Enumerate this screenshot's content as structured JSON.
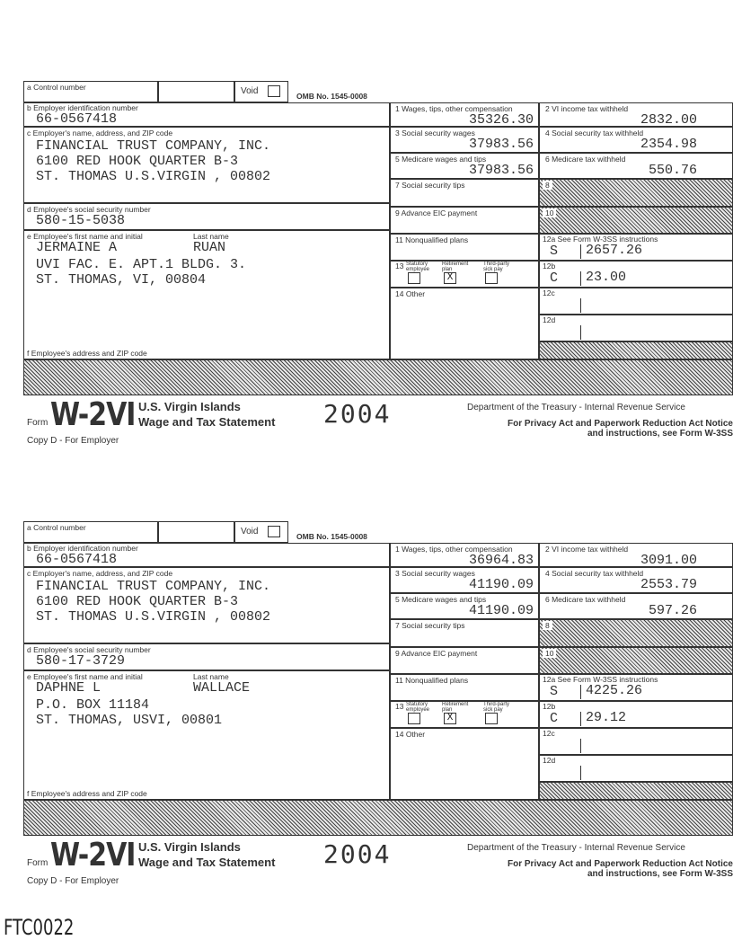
{
  "labels": {
    "a": "a  Control number",
    "void": "Void",
    "omb": "OMB No. 1545-0008",
    "b": "b  Employer identification number",
    "c": "c  Employer's name, address, and ZIP code",
    "d": "d  Employee's social security number",
    "e_first": "e  Employee's first name and initial",
    "e_last": "Last name",
    "f": "f  Employee's address and ZIP code",
    "box1": "1  Wages, tips, other compensation",
    "box2": "2  VI income tax withheld",
    "box3": "3  Social security wages",
    "box4": "4  Social security tax withheld",
    "box5": "5  Medicare wages and tips",
    "box6": "6  Medicare tax withheld",
    "box7": "7  Social security tips",
    "box8": "8",
    "box9": "9  Advance EIC payment",
    "box10": "10",
    "box11": "11  Nonqualified plans",
    "box12a": "12a See Form W-3SS instructions",
    "box12b": "12b",
    "box12c": "12c",
    "box12d": "12d",
    "box13": "13",
    "statutory": "Statutory employee",
    "retirement": "Retirement plan",
    "thirdparty": "Third-party sick pay",
    "box14": "14  Other",
    "form_word": "Form",
    "form_name": "W-2VI",
    "title1": "U.S. Virgin Islands",
    "title2": "Wage and Tax Statement",
    "year": "2004",
    "dept": "Department of the Treasury - Internal Revenue Service",
    "privacy1": "For Privacy Act and Paperwork Reduction Act Notice",
    "privacy2": "and instructions, see Form W-3SS",
    "copy": "Copy D - For Employer"
  },
  "forms": [
    {
      "ein": "66-0567418",
      "employer": [
        "FINANCIAL TRUST COMPANY, INC.",
        "6100 RED HOOK QUARTER B-3",
        "ST. THOMAS U.S.VIRGIN , 00802"
      ],
      "ssn": "580-15-5038",
      "first": "JERMAINE A",
      "last": "RUAN",
      "address": [
        "UVI FAC. E. APT.1 BLDG. 3.",
        "ST. THOMAS, VI, 00804"
      ],
      "box1": "35326.30",
      "box2": "2832.00",
      "box3": "37983.56",
      "box4": "2354.98",
      "box5": "37983.56",
      "box6": "550.76",
      "box12a_code": "S",
      "box12a_amt": "2657.26",
      "box12b_code": "C",
      "box12b_amt": "23.00",
      "retirement_mark": "X"
    },
    {
      "ein": "66-0567418",
      "employer": [
        "FINANCIAL TRUST COMPANY, INC.",
        "6100 RED HOOK QUARTER B-3",
        "ST. THOMAS U.S.VIRGIN , 00802"
      ],
      "ssn": "580-17-3729",
      "first": "DAPHNE L",
      "last": "WALLACE",
      "address": [
        "P.O. BOX 11184",
        "ST. THOMAS, USVI, 00801"
      ],
      "box1": "36964.83",
      "box2": "3091.00",
      "box3": "41190.09",
      "box4": "2553.79",
      "box5": "41190.09",
      "box6": "597.26",
      "box12a_code": "S",
      "box12a_amt": "4225.26",
      "box12b_code": "C",
      "box12b_amt": "29.12",
      "retirement_mark": "X"
    }
  ],
  "footer_code": "FTC0022"
}
